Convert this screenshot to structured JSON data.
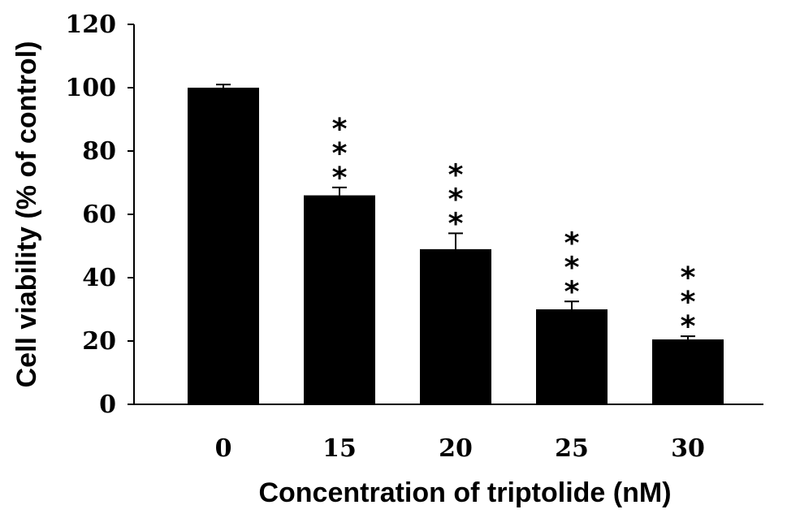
{
  "chart_data": {
    "type": "bar",
    "title": "",
    "xlabel": "Concentration of triptolide (nM)",
    "ylabel": "Cell viability (% of control)",
    "ylim": [
      0,
      120
    ],
    "yticks": [
      "0",
      "20",
      "40",
      "60",
      "80",
      "100",
      "120"
    ],
    "categories": [
      "0",
      "15",
      "20",
      "25",
      "30"
    ],
    "values": [
      100,
      66,
      49,
      30,
      20.5
    ],
    "errors": [
      1,
      2.5,
      5,
      2.5,
      1
    ],
    "significance": [
      "",
      "***",
      "***",
      "***",
      "***"
    ],
    "grid": false,
    "legend": "none",
    "bar_color": "#000000"
  }
}
